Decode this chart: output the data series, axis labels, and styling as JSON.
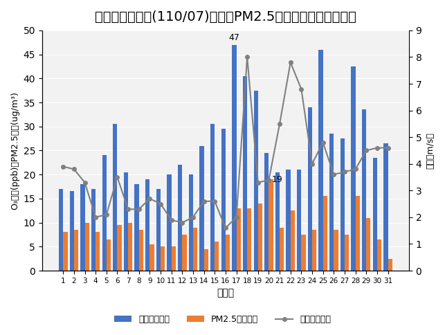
{
  "title": "環保署線西測站(110/07)臭氧、PM2.5與風速日平均值趨勢圖",
  "days": [
    1,
    2,
    3,
    4,
    5,
    6,
    7,
    8,
    9,
    10,
    11,
    12,
    13,
    14,
    15,
    16,
    17,
    18,
    19,
    20,
    21,
    22,
    23,
    24,
    25,
    26,
    27,
    28,
    29,
    30,
    31
  ],
  "ozone": [
    17,
    16.5,
    18,
    17,
    24,
    30.5,
    20.5,
    18,
    19,
    17,
    20,
    22,
    20,
    26,
    30.5,
    29.5,
    47,
    40.5,
    37.5,
    24.5,
    20.5,
    21,
    21,
    34,
    46,
    28.5,
    27.5,
    42.5,
    33.5,
    23.5,
    26.5
  ],
  "pm25": [
    8,
    8.5,
    10,
    8,
    6.5,
    9.5,
    10,
    8.5,
    5.5,
    5,
    5,
    7.5,
    9,
    4.5,
    6,
    7.5,
    13,
    13,
    14,
    19,
    9,
    12.5,
    7.5,
    8.5,
    15.5,
    8.5,
    7.5,
    15.5,
    11,
    6.5,
    2.5
  ],
  "wind": [
    3.9,
    3.8,
    3.3,
    2.0,
    2.1,
    3.5,
    2.3,
    2.3,
    2.7,
    2.5,
    1.9,
    1.8,
    2.0,
    2.6,
    2.6,
    1.6,
    2.0,
    8.0,
    3.3,
    3.4,
    5.5,
    7.8,
    6.8,
    4.0,
    4.8,
    3.6,
    3.7,
    3.8,
    4.5,
    4.6,
    4.6
  ],
  "ozone_color": "#4472C4",
  "pm25_color": "#ED7D31",
  "wind_color": "#808080",
  "xlabel": "日　期",
  "ylabel_left": "O₃濃度(ppb)、PM2.5濃度(ug/m³)",
  "ylabel_right": "風速（m/s）",
  "ylim_left": [
    0,
    50
  ],
  "ylim_right": [
    0,
    9
  ],
  "yticks_left": [
    0,
    5,
    10,
    15,
    20,
    25,
    30,
    35,
    40,
    45,
    50
  ],
  "yticks_right": [
    0,
    1,
    2,
    3,
    4,
    5,
    6,
    7,
    8,
    9
  ],
  "legend_ozone": "臭氧日平均值",
  "legend_pm25": "PM2.5日平均值",
  "legend_wind": "風速日平均值",
  "annotate_47": {
    "day": 17,
    "value": 47,
    "text": "47"
  },
  "annotate_19": {
    "day": 20,
    "value": 19,
    "text": "19"
  },
  "bg_color": "#FFFFFF",
  "title_fontsize": 14
}
